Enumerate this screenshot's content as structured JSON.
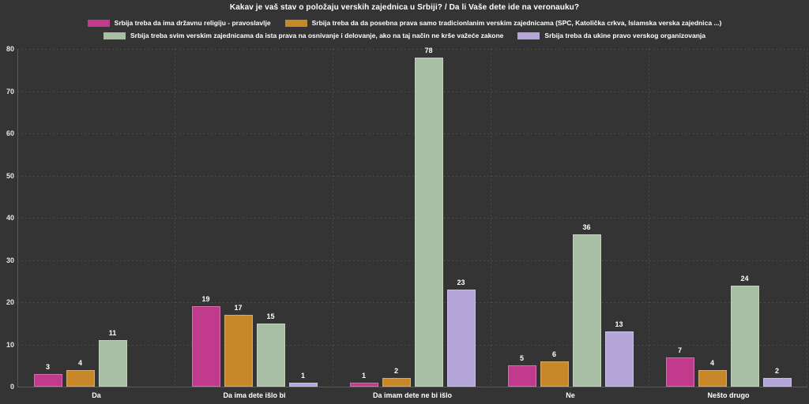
{
  "colors": {
    "background": "#343434",
    "text": "#ffffff",
    "tick_text": "#e8e8e8",
    "gridline": "#4a4a4a",
    "axis_line": "#5a5a5a"
  },
  "chart_data": {
    "type": "bar",
    "title": "Kakav je vaš stav o položaju verskih zajednica u Srbiji? / Da li Vaše dete ide na veronauku?",
    "categories": [
      "Da",
      "Da ima dete išlo bi",
      "Da imam dete ne bi išlo",
      "Ne",
      "Nešto drugo"
    ],
    "series": [
      {
        "name": "Srbija treba da ima državnu religiju - pravoslavlje",
        "color": "#c13a8c",
        "values": [
          3,
          19,
          1,
          5,
          7
        ]
      },
      {
        "name": "Srbija treba da da posebna prava samo tradicionlanim verskim zajednicama (SPC, Katolička crkva, Islamska verska zajednica ...)",
        "color": "#c8882a",
        "values": [
          4,
          17,
          2,
          6,
          4
        ]
      },
      {
        "name": "Srbija treba svim verskim zajednicama da ista prava na osnivanje i delovanje, ako na taj način ne krše važeće zakone",
        "color": "#a9bfa3",
        "values": [
          11,
          15,
          78,
          36,
          24
        ]
      },
      {
        "name": "Srbija treba da ukine pravo verskog organizovanja",
        "color": "#b4a6d8",
        "values": [
          0,
          1,
          23,
          13,
          2
        ]
      }
    ],
    "yticks": [
      0,
      10,
      20,
      30,
      40,
      50,
      60,
      70,
      80
    ],
    "ylim": [
      0,
      80
    ],
    "grid": "dotted",
    "legend_position": "top",
    "value_labels": true,
    "xlabel": "",
    "ylabel": ""
  }
}
